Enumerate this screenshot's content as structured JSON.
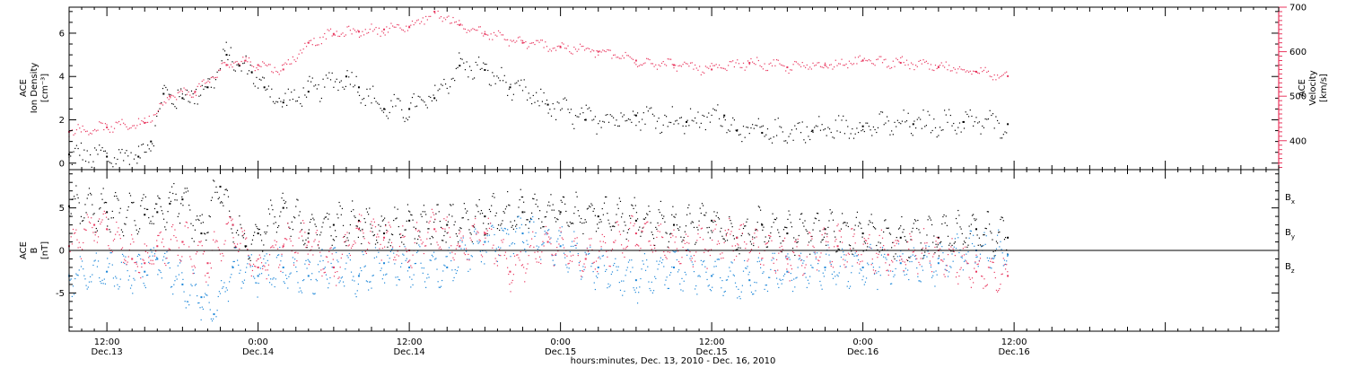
{
  "colors": {
    "black_series": "#000000",
    "velocity": "#e8365e",
    "by": "#1c86d8",
    "bz": "#e8365e",
    "frame": "#000000"
  },
  "xaxis": {
    "range_hours": [
      -3,
      93
    ],
    "tick_labels": [
      {
        "t": 0,
        "time": "12:00",
        "date": "Dec.13"
      },
      {
        "t": 12,
        "time": "0:00",
        "date": "Dec.14"
      },
      {
        "t": 24,
        "time": "12:00",
        "date": "Dec.14"
      },
      {
        "t": 36,
        "time": "0:00",
        "date": "Dec.15"
      },
      {
        "t": 48,
        "time": "12:00",
        "date": "Dec.15"
      },
      {
        "t": 60,
        "time": "0:00",
        "date": "Dec.16"
      },
      {
        "t": 72,
        "time": "12:00",
        "date": "Dec.16"
      }
    ],
    "xlabel": "hours:minutes, Dec. 13, 2010 - Dec. 16, 2010"
  },
  "chart_data": [
    {
      "type": "scatter",
      "panel": "top",
      "ylabel_left_lines": [
        "ACE",
        "Ion Density",
        "[cm⁻³]"
      ],
      "ylabel_right_lines": [
        "ACE",
        "Velocity",
        "[km/s]"
      ],
      "ylim_left": [
        -0.3,
        7.2
      ],
      "ylim_right": [
        335,
        700
      ],
      "yticks_left": [
        0,
        2,
        4,
        6
      ],
      "yticks_right": [
        400,
        500,
        600,
        700
      ],
      "series": [
        {
          "axis": "left",
          "t": [
            -3,
            0,
            2.5,
            3.5,
            4.5,
            6,
            8,
            9.5,
            10.5,
            11.5,
            12.5,
            14,
            16,
            19,
            20,
            22,
            24,
            26,
            28,
            30,
            32,
            35,
            38,
            42,
            46,
            49,
            50,
            52,
            56,
            60,
            64,
            68,
            71.5
          ],
          "values": [
            0.4,
            0.3,
            0.3,
            1.0,
            3.2,
            3.0,
            3.5,
            5.0,
            4.5,
            4.2,
            3.5,
            2.8,
            3.3,
            4.0,
            3.5,
            2.5,
            2.5,
            3.0,
            4.5,
            4.3,
            3.5,
            2.7,
            2.0,
            2.2,
            1.9,
            2.2,
            1.5,
            1.4,
            1.5,
            1.7,
            1.8,
            1.9,
            1.8
          ]
        },
        {
          "axis": "right",
          "t": [
            -3,
            0,
            3,
            5,
            7,
            9.5,
            11,
            12,
            14,
            16,
            18,
            20,
            22,
            24,
            26,
            28,
            30,
            33,
            36,
            39,
            42,
            45,
            48,
            51,
            54,
            57,
            60,
            63,
            66,
            69,
            71.5
          ],
          "values": [
            420,
            430,
            440,
            500,
            510,
            570,
            580,
            570,
            560,
            620,
            640,
            645,
            650,
            655,
            690,
            660,
            640,
            620,
            610,
            600,
            580,
            570,
            560,
            575,
            565,
            570,
            580,
            575,
            565,
            555,
            545
          ]
        }
      ]
    },
    {
      "type": "scatter",
      "panel": "bottom",
      "ylabel_lines": [
        "ACE",
        "B",
        "[nT]"
      ],
      "ylim": [
        -9.5,
        9.5
      ],
      "yticks": [
        -5,
        0,
        5
      ],
      "legend_position": "right",
      "series": [
        {
          "name": "Bx",
          "t": [
            -3,
            0,
            3,
            4,
            5,
            6,
            7.5,
            9,
            10,
            11,
            12,
            14,
            16,
            18,
            20,
            22,
            24,
            27,
            30,
            33,
            36,
            39,
            42,
            45,
            48,
            50,
            52,
            54,
            57,
            60,
            63,
            66,
            69,
            71.5
          ],
          "values": [
            5.2,
            4.5,
            4.2,
            4.5,
            5.5,
            6.0,
            2.0,
            7.5,
            3.0,
            0.5,
            2.0,
            5.0,
            2.0,
            3.0,
            3.5,
            2.0,
            3.5,
            3.0,
            4.0,
            4.5,
            4.5,
            4.0,
            3.5,
            3.0,
            3.5,
            1.5,
            3.0,
            2.0,
            2.5,
            2.0,
            1.5,
            1.5,
            2.5,
            1.5
          ]
        },
        {
          "name": "By",
          "t": [
            -3,
            0,
            3,
            4,
            6,
            7.5,
            8.5,
            10,
            12,
            14,
            16,
            18,
            20,
            22,
            24,
            27,
            30,
            33,
            36,
            39,
            42,
            45,
            48,
            51,
            54,
            57,
            60,
            63,
            66,
            69,
            71.5
          ],
          "values": [
            -3.0,
            -2.5,
            -2.5,
            -1.0,
            -4.0,
            -5.5,
            -7.5,
            -2.0,
            -3.0,
            -2.0,
            -3.0,
            -2.0,
            -3.0,
            -1.5,
            -2.0,
            -2.0,
            1.0,
            2.0,
            0.5,
            -2.0,
            -3.5,
            -2.0,
            -3.0,
            -3.5,
            -2.5,
            -2.0,
            -2.0,
            -1.5,
            -1.5,
            0.0,
            -0.5
          ]
        },
        {
          "name": "Bz",
          "t": [
            -3,
            -1,
            0,
            2,
            3,
            4,
            6,
            8,
            10,
            12,
            14,
            16,
            18,
            20,
            22,
            24,
            26,
            28,
            30,
            32,
            35,
            38,
            42,
            46,
            50,
            54,
            58,
            62,
            66,
            69,
            71.5
          ],
          "values": [
            0.5,
            3.0,
            2.5,
            -1.0,
            -1.5,
            0.5,
            1.0,
            -1.5,
            3.0,
            -2.0,
            0.5,
            1.0,
            -2.0,
            2.5,
            1.5,
            0.0,
            2.5,
            0.5,
            2.0,
            -2.5,
            1.0,
            -1.0,
            2.0,
            0.0,
            1.5,
            -1.0,
            0.5,
            -0.5,
            0.0,
            -2.5,
            -3.0
          ]
        }
      ]
    }
  ],
  "legend_entries": [
    {
      "base": "B",
      "sub": "x",
      "color": "#000000"
    },
    {
      "base": "B",
      "sub": "y",
      "color": "#1c86d8"
    },
    {
      "base": "B",
      "sub": "z",
      "color": "#e8365e"
    }
  ]
}
